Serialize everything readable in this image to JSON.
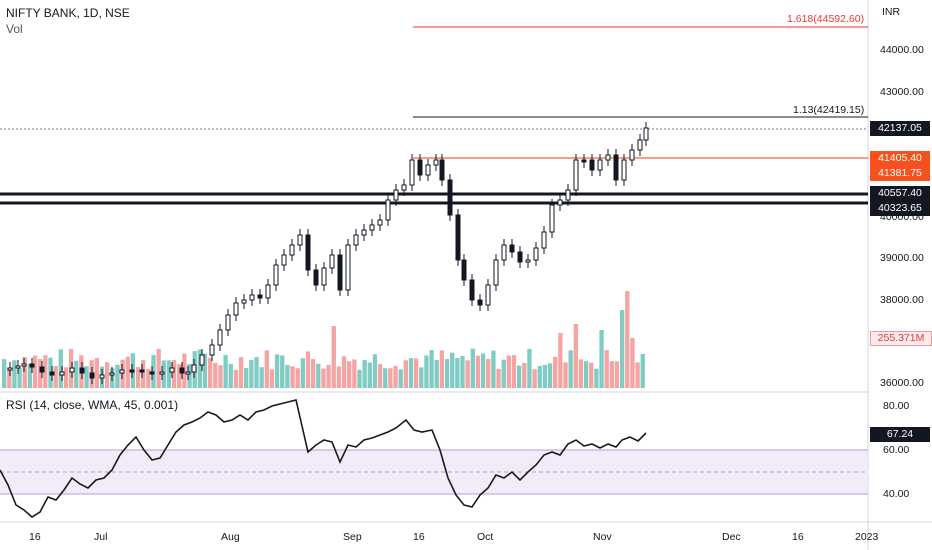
{
  "header": {
    "symbol": "NIFTY BANK, 1D, NSE",
    "volume_label": "Vol",
    "rsi_label": "RSI (14, close, WMA, 45, 0.001)"
  },
  "price_axis": {
    "currency": "INR",
    "ticks": [
      "44000.00",
      "43000.00",
      "40000.00",
      "39000.00",
      "38000.00",
      "36000.00"
    ]
  },
  "rsi_axis": {
    "ticks": [
      "80.00",
      "60.00",
      "40.00"
    ]
  },
  "time_axis": {
    "labels": [
      "16",
      "Jul",
      "Aug",
      "Sep",
      "16",
      "Oct",
      "Nov",
      "Dec",
      "16",
      "2023"
    ]
  },
  "levels": {
    "fib_1618": "1.618(44592.60)",
    "fib_113": "1.13(42419.15)"
  },
  "badges": {
    "last_price": "42137.05",
    "resistance_a": "41405.40",
    "resistance_b": "41381.75",
    "support_a": "40557.40",
    "support_b": "40323.65",
    "volume": "255.371M",
    "rsi": "67.24"
  },
  "colors": {
    "up": "#26a69a",
    "down": "#ef5350",
    "fib_red": "#e53935",
    "orange": "#f57c5b",
    "rsi_band": "#ede7f6",
    "rsi_line": "#1a1a1a"
  }
}
